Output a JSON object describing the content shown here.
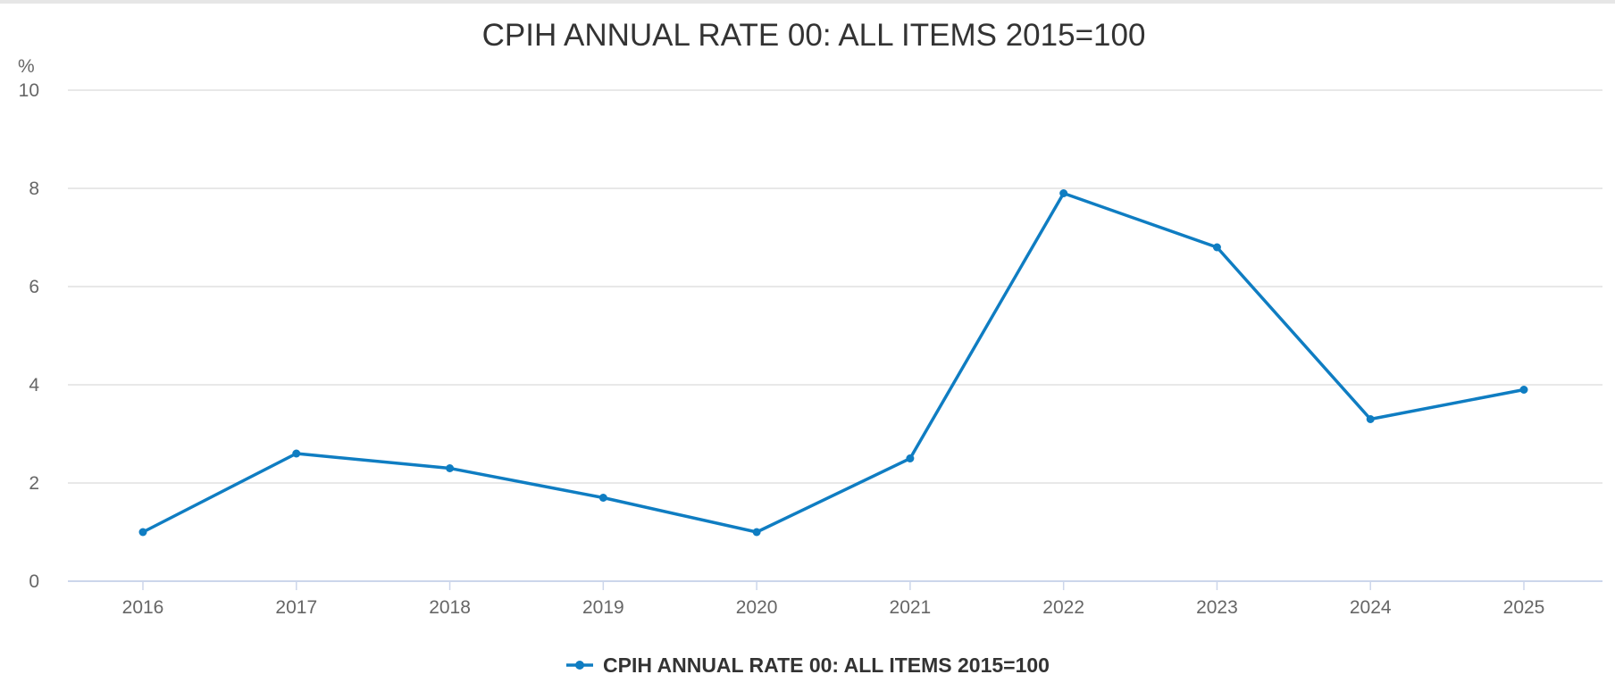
{
  "chart_data": {
    "type": "line",
    "title": "CPIH ANNUAL RATE 00: ALL ITEMS 2015=100",
    "ylabel": "%",
    "xlabel": "",
    "categories": [
      "2016",
      "2017",
      "2018",
      "2019",
      "2020",
      "2021",
      "2022",
      "2023",
      "2024",
      "2025"
    ],
    "series": [
      {
        "name": "CPIH ANNUAL RATE 00: ALL ITEMS 2015=100",
        "values": [
          1.0,
          2.6,
          2.3,
          1.7,
          1.0,
          2.5,
          7.9,
          6.8,
          3.3,
          3.9
        ],
        "color": "#0f7dc2"
      }
    ],
    "ylim": [
      0,
      10
    ],
    "yticks": [
      "0",
      "2",
      "4",
      "6",
      "8",
      "10"
    ],
    "grid": true,
    "legend_position": "bottom-center"
  }
}
